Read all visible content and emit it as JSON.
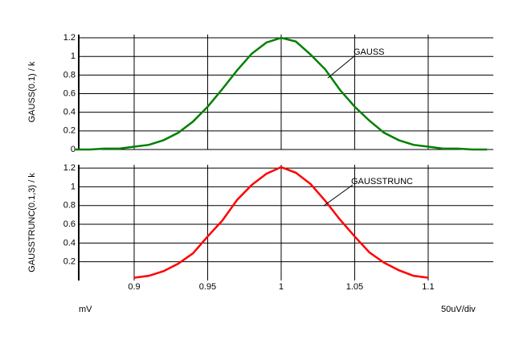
{
  "chart_data": [
    {
      "type": "line",
      "ylabel": "GAUSS(0.1) / k",
      "x": [
        0.86,
        0.87,
        0.88,
        0.89,
        0.9,
        0.91,
        0.92,
        0.93,
        0.94,
        0.95,
        0.96,
        0.97,
        0.98,
        0.99,
        1,
        1.01,
        1.02,
        1.03,
        1.04,
        1.05,
        1.06,
        1.07,
        1.08,
        1.09,
        1.1,
        1.11,
        1.12,
        1.13,
        1.14
      ],
      "series": [
        {
          "name": "GAUSS",
          "color": "#008000",
          "values": [
            0,
            0,
            0.01,
            0.01,
            0.03,
            0.05,
            0.1,
            0.18,
            0.3,
            0.46,
            0.65,
            0.85,
            1.03,
            1.15,
            1.2,
            1.16,
            1.02,
            0.86,
            0.64,
            0.46,
            0.31,
            0.18,
            0.1,
            0.05,
            0.03,
            0.01,
            0.01,
            0,
            0
          ]
        }
      ],
      "annotation": "GAUSS",
      "xlim": [
        0.8623,
        1.1443
      ],
      "xticks": [
        0.9,
        0.95,
        1,
        1.05,
        1.1
      ],
      "xtick_labels": false,
      "ylim": [
        0,
        1.235
      ],
      "yticks": [
        0,
        0.2,
        0.4,
        0.6,
        0.8,
        1,
        1.2
      ],
      "grid": true
    },
    {
      "type": "line",
      "ylabel": "GAUSSTRUNC(0.1,3) / k",
      "x": [
        0.9,
        0.91,
        0.92,
        0.93,
        0.94,
        0.95,
        0.96,
        0.97,
        0.98,
        0.99,
        1,
        1.01,
        1.02,
        1.03,
        1.04,
        1.05,
        1.06,
        1.07,
        1.08,
        1.09,
        1.1
      ],
      "series": [
        {
          "name": "GAUSSTRUNC",
          "color": "#ff0000",
          "values": [
            0.03,
            0.05,
            0.1,
            0.18,
            0.29,
            0.47,
            0.64,
            0.86,
            1.02,
            1.14,
            1.21,
            1.15,
            1.03,
            0.85,
            0.65,
            0.47,
            0.3,
            0.19,
            0.11,
            0.05,
            0.03
          ]
        }
      ],
      "annotation": "GAUSSTRUNC",
      "xlim": [
        0.8623,
        1.1443
      ],
      "xticks": [
        0.9,
        0.95,
        1,
        1.05,
        1.1
      ],
      "xtick_labels": true,
      "ylim": [
        0,
        1.235
      ],
      "yticks": [
        0.2,
        0.4,
        0.6,
        0.8,
        1,
        1.2
      ],
      "grid": true,
      "x_unit": "mV",
      "x_division": "50uV/div"
    }
  ]
}
